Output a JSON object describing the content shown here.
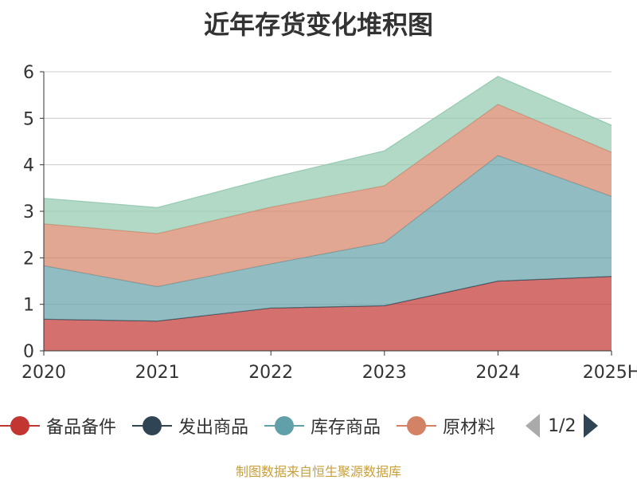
{
  "chart_data": {
    "type": "area",
    "stacked": true,
    "title": "近年存货变化堆积图",
    "ylabel": "",
    "xlabel": "",
    "categories": [
      "2020",
      "2021",
      "2022",
      "2023",
      "2024",
      "2025H"
    ],
    "ylim": [
      0,
      6
    ],
    "yticks": [
      0,
      1,
      2,
      3,
      4,
      5,
      6
    ],
    "grid": true,
    "legend_position": "bottom",
    "series": [
      {
        "name": "备品备件",
        "values": [
          0.68,
          0.64,
          0.92,
          0.97,
          1.5,
          1.6
        ],
        "color": "#c23531"
      },
      {
        "name": "发出商品",
        "values": [
          0,
          0,
          0,
          0,
          0,
          0
        ],
        "color": "#2f4554"
      },
      {
        "name": "库存商品",
        "values": [
          1.15,
          0.74,
          0.95,
          1.36,
          2.7,
          1.72
        ],
        "color": "#61a0a8"
      },
      {
        "name": "原材料",
        "values": [
          0.9,
          1.14,
          1.22,
          1.22,
          1.1,
          0.95
        ],
        "color": "#d48265"
      },
      {
        "name": "",
        "values": [
          0.55,
          0.56,
          0.63,
          0.75,
          0.6,
          0.58
        ],
        "color": "#91c7ae"
      }
    ]
  },
  "legend": {
    "items": [
      "备品备件",
      "发出商品",
      "库存商品",
      "原材料"
    ],
    "page_label": "1/2"
  },
  "source": "制图数据来自恒生聚源数据库"
}
